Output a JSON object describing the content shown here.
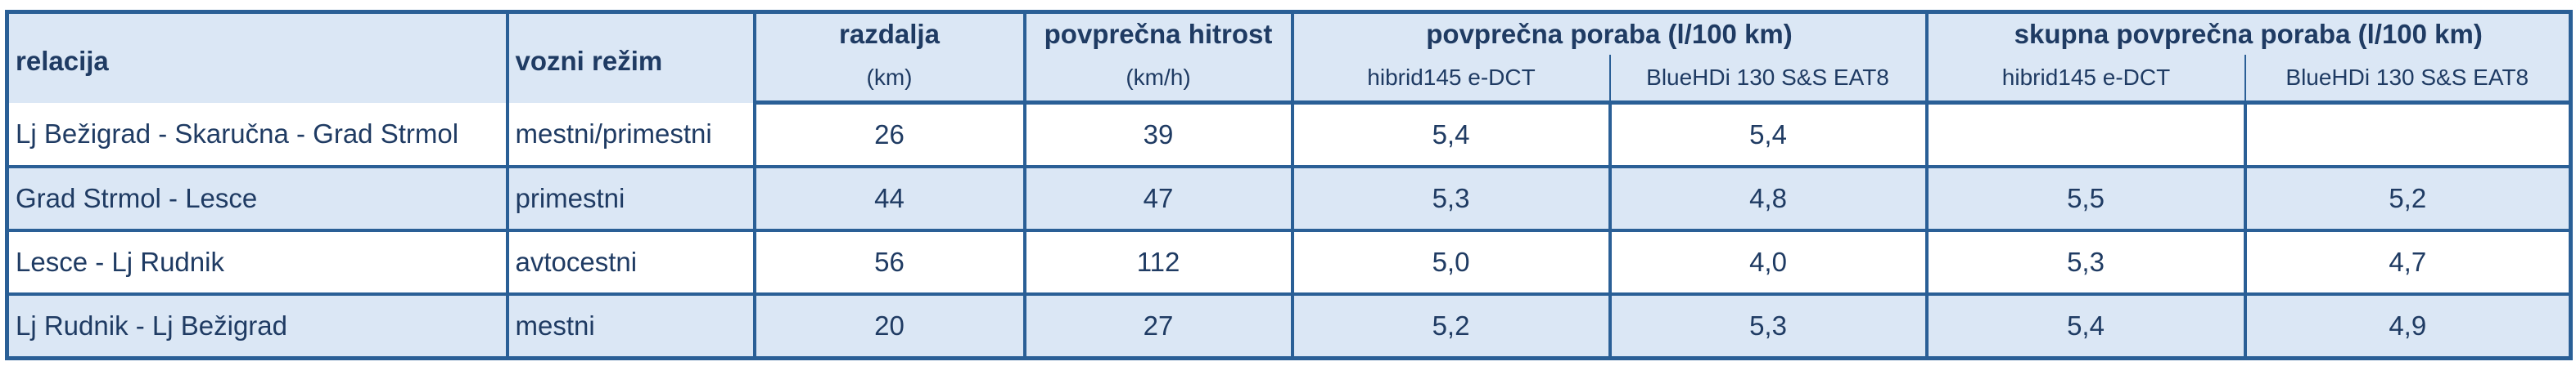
{
  "table": {
    "headers": {
      "relacija": "relacija",
      "vozni_rezim": "vozni režim",
      "razdalja": "razdalja",
      "razdalja_unit": "(km)",
      "hitrost": "povprečna hitrost",
      "hitrost_unit": "(km/h)",
      "poraba_group": "povprečna poraba (l/100 km)",
      "skupna_group": "skupna povprečna poraba  (l/100 km)",
      "hibrid": "hibrid145 e-DCT",
      "bluehdi": "BlueHDi 130 S&S EAT8"
    },
    "rows": [
      {
        "relacija": "Lj Bežigrad - Skaručna - Grad Strmol",
        "vozni_rezim": "mestni/primestni",
        "razdalja": "26",
        "hitrost": "39",
        "poraba_hibrid": "5,4",
        "poraba_bluehdi": "5,4",
        "skupna_hibrid": "",
        "skupna_bluehdi": ""
      },
      {
        "relacija": "Grad Strmol - Lesce",
        "vozni_rezim": "primestni",
        "razdalja": "44",
        "hitrost": "47",
        "poraba_hibrid": "5,3",
        "poraba_bluehdi": "4,8",
        "skupna_hibrid": "5,5",
        "skupna_bluehdi": "5,2"
      },
      {
        "relacija": "Lesce - Lj Rudnik",
        "vozni_rezim": "avtocestni",
        "razdalja": "56",
        "hitrost": "112",
        "poraba_hibrid": "5,0",
        "poraba_bluehdi": "4,0",
        "skupna_hibrid": "5,3",
        "skupna_bluehdi": "4,7"
      },
      {
        "relacija": "Lj Rudnik - Lj Bežigrad",
        "vozni_rezim": "mestni",
        "razdalja": "20",
        "hitrost": "27",
        "poraba_hibrid": "5,2",
        "poraba_bluehdi": "5,3",
        "skupna_hibrid": "5,4",
        "skupna_bluehdi": "4,9"
      }
    ]
  },
  "colors": {
    "border": "#2a5f96",
    "text": "#1f3b63",
    "band": "#dbe7f5",
    "white": "#ffffff"
  }
}
